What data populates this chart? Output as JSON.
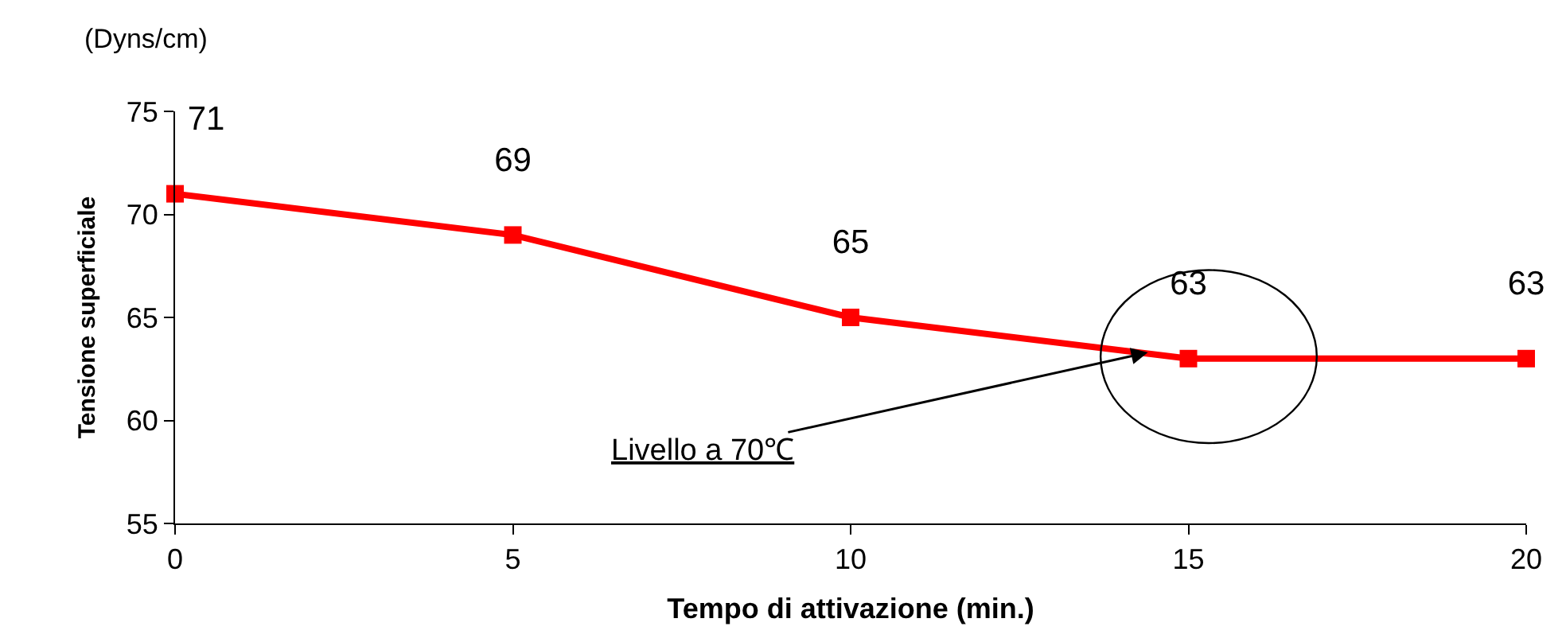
{
  "chart_data": {
    "type": "line",
    "xlabel": "Tempo di attivazione (min.)",
    "ylabel": "Tensione superficiale",
    "x": [
      0,
      5,
      10,
      15,
      20
    ],
    "series": [
      {
        "color": "#ff0000",
        "values": [
          71,
          69,
          65,
          63,
          63
        ]
      }
    ],
    "xlim": [
      0,
      20
    ],
    "xticks": [
      0,
      5,
      10,
      15,
      20
    ],
    "ylim": [
      55,
      75
    ],
    "yticks": [
      55,
      60,
      65,
      70,
      75
    ],
    "legend": false,
    "marker": "square",
    "line_style": "solid",
    "data_labels": true,
    "annotations": [
      "(Dyns/cm)",
      {
        "text": "Livello a 70℃",
        "x": 14.4,
        "y": 63.3
      }
    ]
  }
}
